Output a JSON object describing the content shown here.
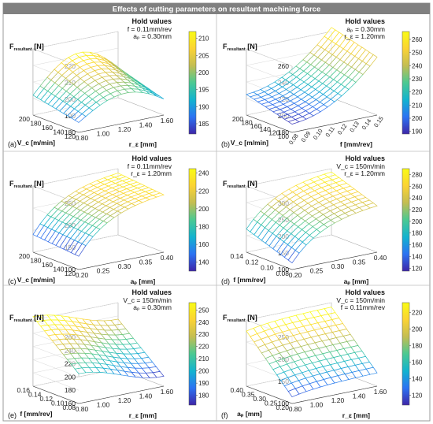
{
  "figure": {
    "title": "Effects of cutting parameters on resultant machining force",
    "title_bg": "#808080",
    "hold_values_label": "Hold values"
  },
  "colormap": [
    "#3e26a8",
    "#2c73f2",
    "#13b3cf",
    "#4bc992",
    "#c3bd52",
    "#fbd334",
    "#f9fb15"
  ],
  "chart_data": [
    {
      "type": "surface",
      "panel": "(a)",
      "zlabel_main": "F",
      "zlabel_sub": "resultant",
      "zlabel_unit": "[N]",
      "hold": [
        "f = 0.11mm/rev",
        "a",
        "= 0.30mm"
      ],
      "hold_lines": [
        "f = 0.11mm/rev",
        "aₚ = 0.30mm"
      ],
      "x_label": "r_ε [mm]",
      "x_ticks": [
        "0.80",
        "1.00",
        "1.20",
        "1.40",
        "1.60"
      ],
      "y_label": "V_c [m/min]",
      "y_ticks": [
        "120",
        "140",
        "160",
        "180",
        "200"
      ],
      "z_ticks": [
        "180",
        "190",
        "200",
        "210",
        "220"
      ],
      "colorbar_ticks": [
        "185",
        "190",
        "195",
        "200",
        "205",
        "210"
      ],
      "colorbar_range": [
        182,
        212
      ],
      "z_range": [
        180,
        220
      ],
      "z_surface": {
        "type": "bump",
        "base": 186,
        "amp_x": 20,
        "amp_y": 6
      }
    },
    {
      "type": "surface",
      "panel": "(b)",
      "hold_lines": [
        "aₚ = 0.30mm",
        "r_ε = 1.20mm"
      ],
      "x_label": "f [mm/rev]",
      "x_ticks": [
        "0.08",
        "0.09",
        "0.10",
        "0.11",
        "0.12",
        "0.13",
        "0.14",
        "0.15"
      ],
      "y_label": "V_c [m/min]",
      "y_ticks": [
        "100",
        "120",
        "140",
        "160",
        "180",
        "200"
      ],
      "z_ticks": [
        "180",
        "200",
        "220",
        "240",
        "260"
      ],
      "colorbar_ticks": [
        "190",
        "200",
        "210",
        "220",
        "230",
        "240",
        "250",
        "260"
      ],
      "colorbar_range": [
        188,
        266
      ],
      "z_range": [
        180,
        260
      ],
      "z_surface": {
        "type": "linear",
        "base": 190,
        "amp_x": 60,
        "amp_y": 15
      }
    },
    {
      "type": "surface",
      "panel": "(c)",
      "hold_lines": [
        "f = 0.11mm/rev",
        "r_ε = 1.20mm"
      ],
      "x_label": "aₚ [mm]",
      "x_ticks": [
        "0.20",
        "0.25",
        "0.30",
        "0.35",
        "0.40"
      ],
      "y_label": "V_c [m/min]",
      "y_ticks": [
        "120",
        "140",
        "160",
        "180",
        "200"
      ],
      "z_ticks": [
        "100",
        "150",
        "200",
        "250"
      ],
      "colorbar_ticks": [
        "140",
        "160",
        "180",
        "200",
        "220",
        "240"
      ],
      "colorbar_range": [
        130,
        245
      ],
      "z_range": [
        100,
        250
      ],
      "z_surface": {
        "type": "sat",
        "base": 130,
        "amp_x": 100,
        "amp_y": 10
      }
    },
    {
      "type": "surface",
      "panel": "(d)",
      "hold_lines": [
        "V_c = 150m/min",
        "r_ε = 1.20mm"
      ],
      "x_label": "aₚ [mm]",
      "x_ticks": [
        "0.20",
        "0.25",
        "0.30",
        "0.35",
        "0.40"
      ],
      "y_label": "f [mm/rev]",
      "y_ticks": [
        "0.08",
        "0.10",
        "0.12",
        "0.14"
      ],
      "z_ticks": [
        "100",
        "150",
        "200",
        "250",
        "300"
      ],
      "colorbar_ticks": [
        "120",
        "140",
        "160",
        "180",
        "200",
        "220",
        "240",
        "260",
        "280"
      ],
      "colorbar_range": [
        115,
        290
      ],
      "z_range": [
        100,
        300
      ],
      "z_surface": {
        "type": "sat",
        "base": 120,
        "amp_x": 120,
        "amp_y": 50
      }
    },
    {
      "type": "surface",
      "panel": "(e)",
      "hold_lines": [
        "V_c = 150m/min",
        "aₚ = 0.30mm"
      ],
      "x_label": "r_ε [mm]",
      "x_ticks": [
        "0.80",
        "1.00",
        "1.20",
        "1.40",
        "1.60"
      ],
      "y_label": "f [mm/rev]",
      "y_ticks": [
        "0.08",
        "0.10",
        "0.12",
        "0.14",
        "0.16"
      ],
      "z_ticks": [
        "160",
        "180",
        "200",
        "220",
        "240",
        "260"
      ],
      "colorbar_ticks": [
        "180",
        "190",
        "200",
        "210",
        "220",
        "230",
        "240",
        "250"
      ],
      "colorbar_range": [
        172,
        256
      ],
      "z_range": [
        160,
        260
      ],
      "z_surface": {
        "type": "valley",
        "base": 175,
        "amp_x": 30,
        "amp_y": 60
      }
    },
    {
      "type": "surface",
      "panel": "(f)",
      "hold_lines": [
        "V_c = 150m/min",
        "f = 0.11mm/rev"
      ],
      "x_label": "r_ε [mm]",
      "x_ticks": [
        "0.80",
        "1.00",
        "1.20",
        "1.40",
        "1.60"
      ],
      "y_label": "aₚ [mm]",
      "y_ticks": [
        "0.20",
        "0.25",
        "0.30",
        "0.35",
        "0.40"
      ],
      "z_ticks": [
        "100",
        "150",
        "200",
        "250"
      ],
      "colorbar_ticks": [
        "120",
        "140",
        "160",
        "180",
        "200",
        "220"
      ],
      "colorbar_range": [
        108,
        232
      ],
      "z_range": [
        100,
        250
      ],
      "z_surface": {
        "type": "sat",
        "base": 115,
        "amp_x": 15,
        "amp_y": 110
      }
    }
  ]
}
